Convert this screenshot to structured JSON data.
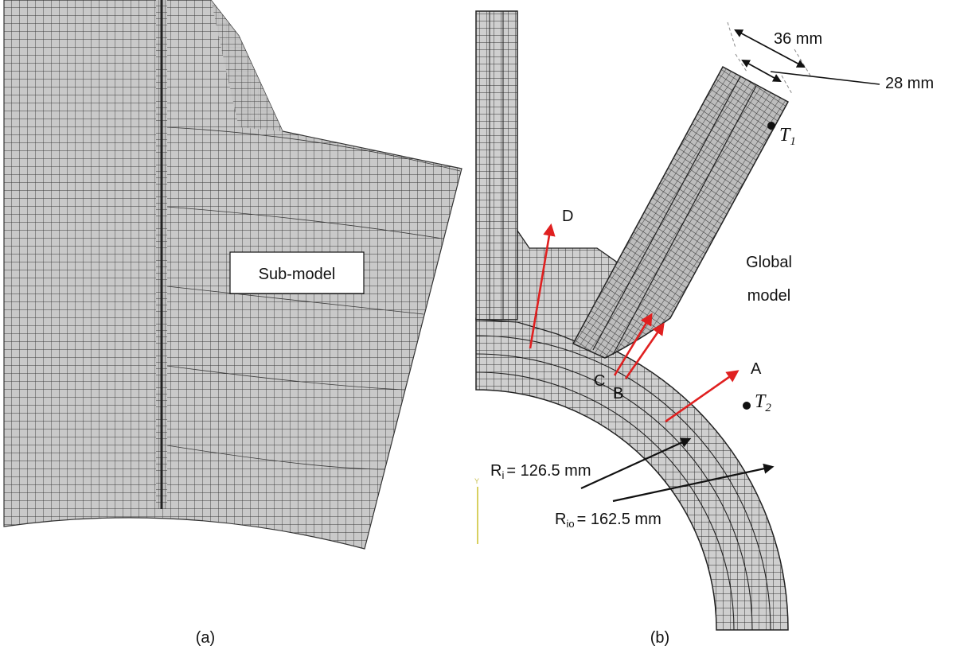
{
  "panel_a": {
    "caption": "(a)",
    "sub_model_label": "Sub-model"
  },
  "panel_b": {
    "caption": "(b)",
    "dim_outer": "36 mm",
    "dim_inner": "28 mm",
    "t1": {
      "main": "T",
      "sub": "1"
    },
    "t2": {
      "main": "T",
      "sub": "2"
    },
    "global_model_line1": "Global",
    "global_model_line2": "model",
    "path_labels": {
      "a": "A",
      "b": "B",
      "c": "C",
      "d": "D"
    },
    "ri": {
      "main": "R",
      "sub": "i",
      "value": "= 126.5 mm"
    },
    "rio": {
      "main": "R",
      "sub": "io",
      "value": "= 162.5 mm"
    },
    "axis_label": "Y"
  },
  "colors": {
    "mesh_fill": "#c9c9c9",
    "mesh_line": "#3a3a3a",
    "arrow_red": "#e02020",
    "arrow_black": "#111111",
    "axis_yellow": "#d8d060"
  }
}
